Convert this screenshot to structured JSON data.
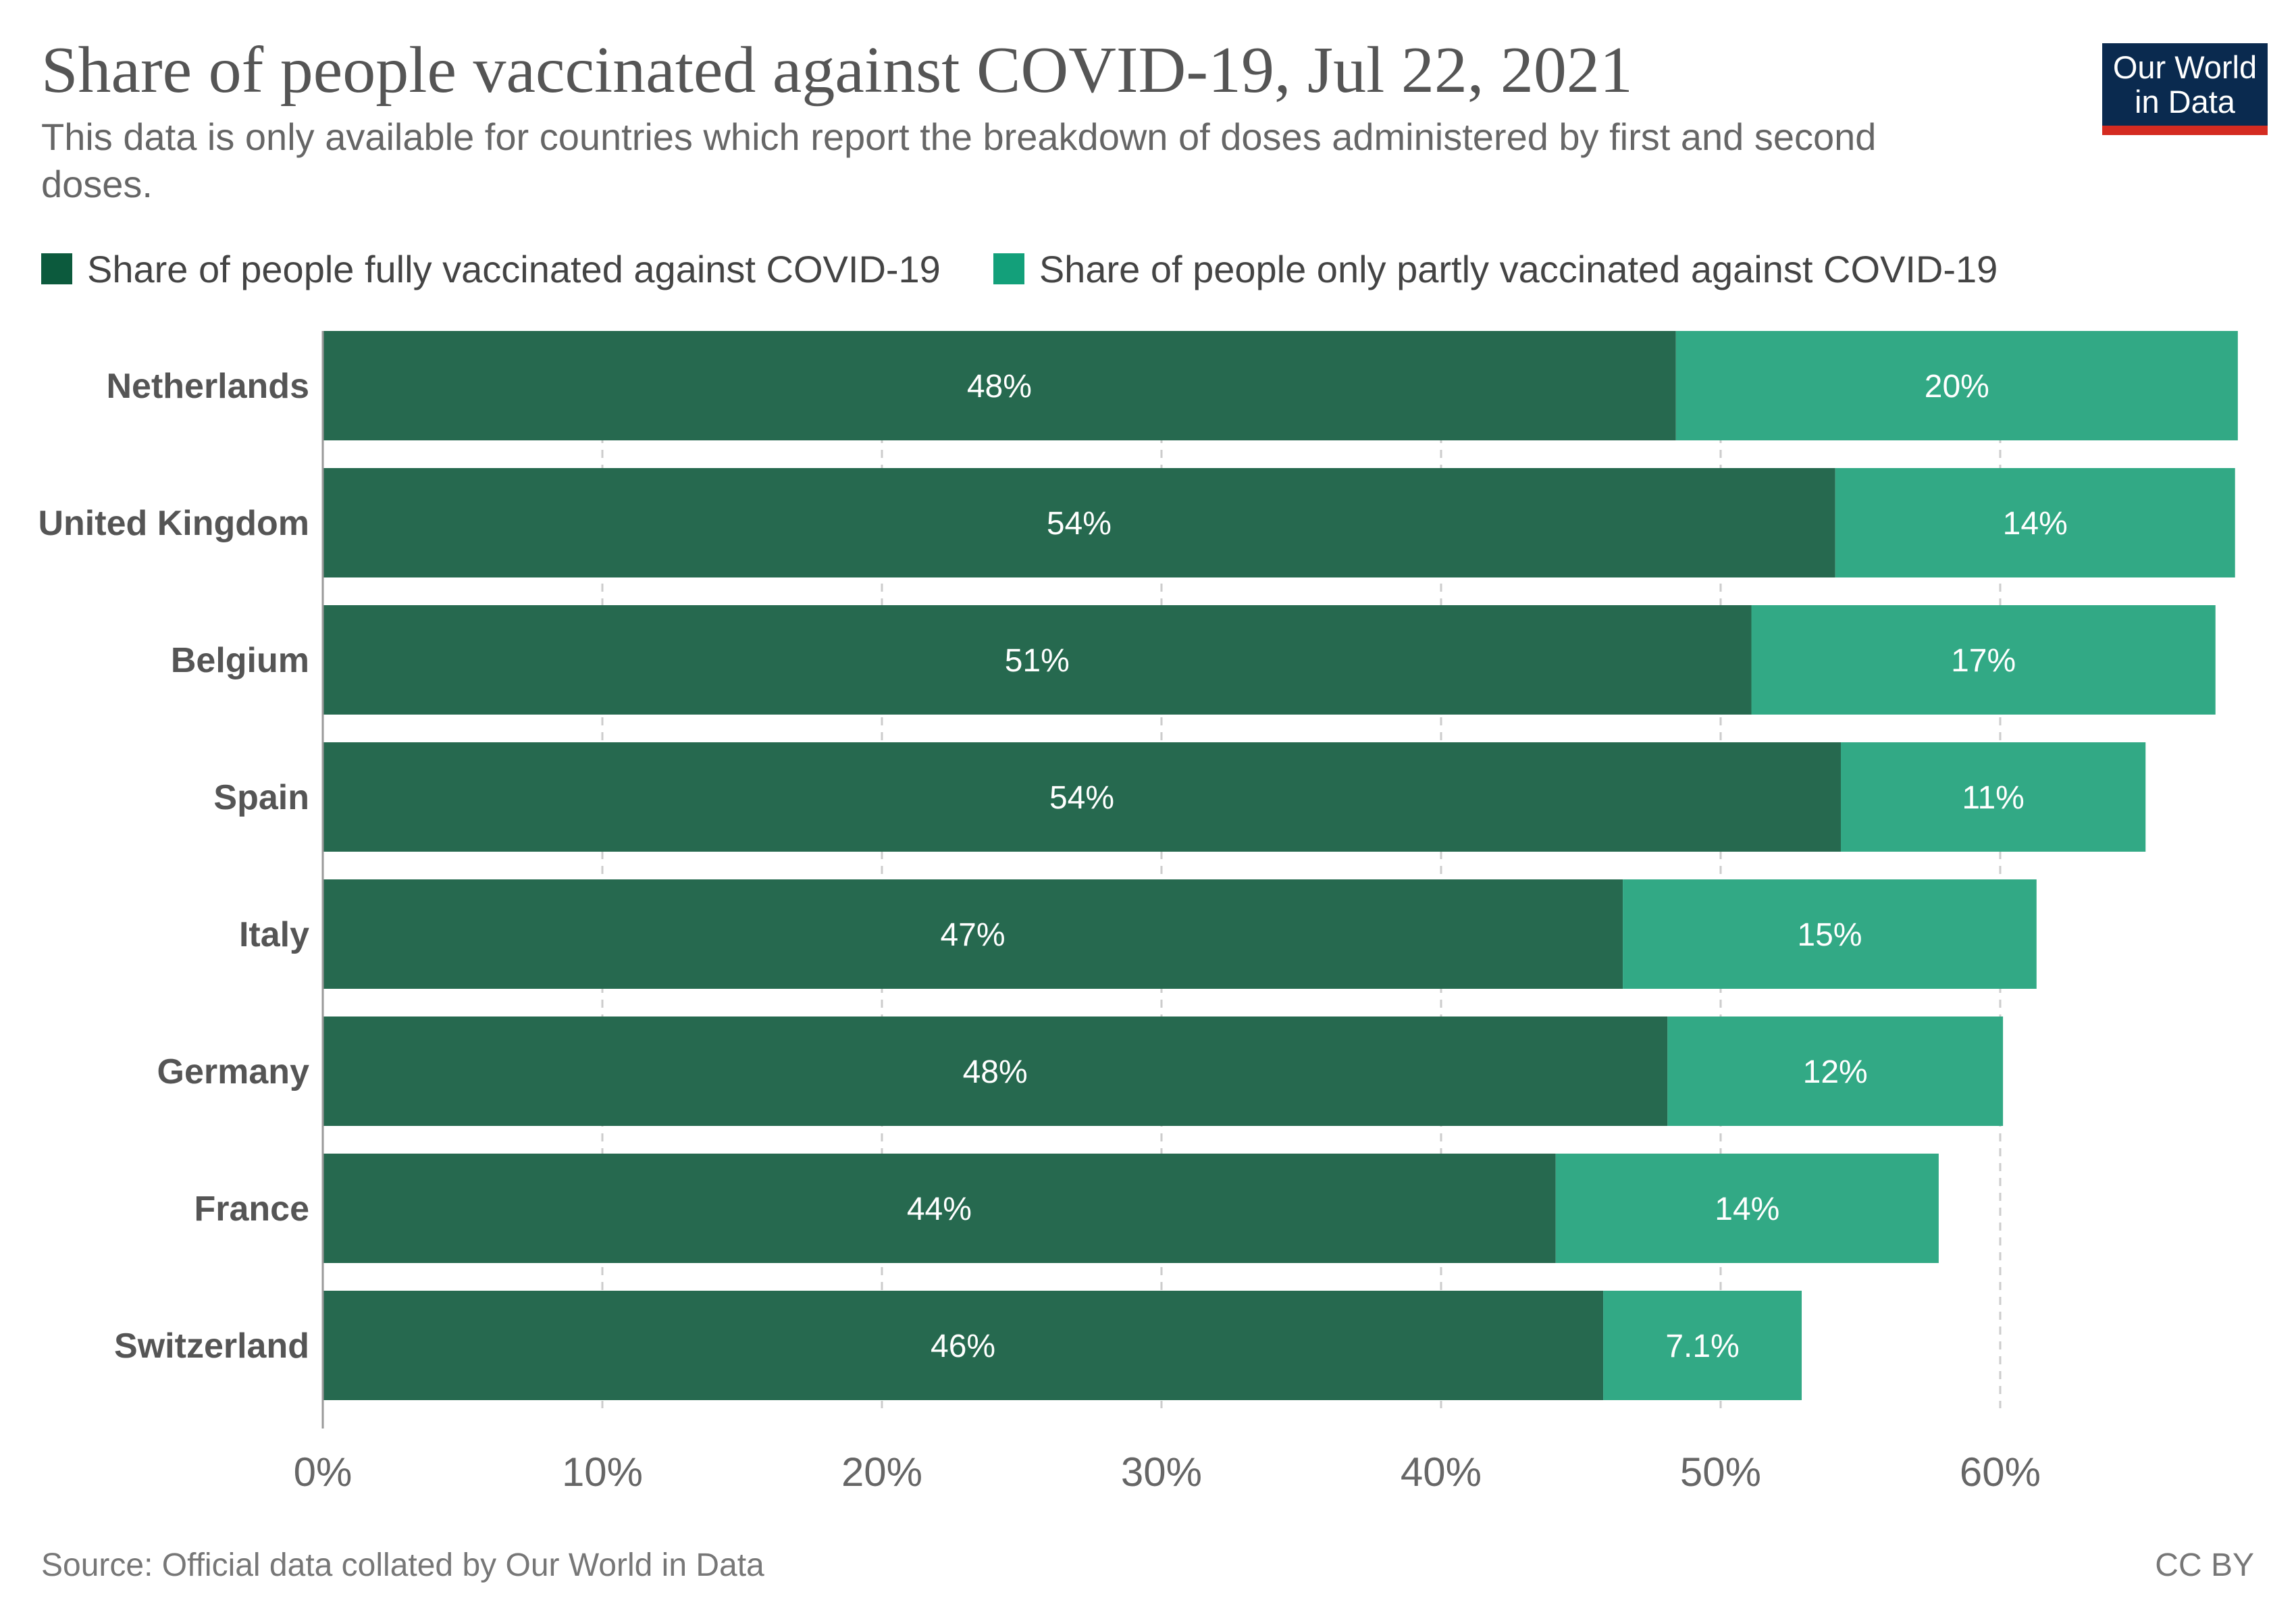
{
  "header": {
    "title": "Share of people vaccinated against COVID-19, Jul 22, 2021",
    "subtitle": "This data is only available for countries which report the breakdown of doses administered by first and second doses."
  },
  "logo": {
    "line1": "Our World",
    "line2": "in Data",
    "bg_color": "#0a2a4f",
    "accent_color": "#d42b21"
  },
  "footer": {
    "source": "Source: Official data collated by Our World in Data",
    "license": "CC BY"
  },
  "chart_data": {
    "type": "bar",
    "orientation": "horizontal",
    "stacked": true,
    "categories": [
      "Netherlands",
      "United Kingdom",
      "Belgium",
      "Spain",
      "Italy",
      "Germany",
      "France",
      "Switzerland"
    ],
    "series": [
      {
        "name": "Share of people fully vaccinated against COVID-19",
        "color": "#26694f",
        "legend_color": "#0c5a3d",
        "values": [
          48.4,
          54.1,
          51.1,
          54.3,
          46.5,
          48.1,
          44.1,
          45.8
        ],
        "labels": [
          "48%",
          "54%",
          "51%",
          "54%",
          "47%",
          "48%",
          "44%",
          "46%"
        ]
      },
      {
        "name": "Share of people only partly vaccinated against COVID-19",
        "color": "#32a985",
        "legend_color": "#13a07a",
        "values": [
          20.1,
          14.3,
          16.6,
          10.9,
          14.8,
          12.0,
          13.7,
          7.1
        ],
        "labels": [
          "20%",
          "14%",
          "17%",
          "11%",
          "15%",
          "12%",
          "14%",
          "7.1%"
        ]
      }
    ],
    "xlim": [
      0,
      68.6
    ],
    "xticks": [
      0,
      10,
      20,
      30,
      40,
      50,
      60
    ],
    "xtick_labels": [
      "0%",
      "10%",
      "20%",
      "30%",
      "40%",
      "50%",
      "60%"
    ],
    "grid": true,
    "legend_position": "top"
  }
}
